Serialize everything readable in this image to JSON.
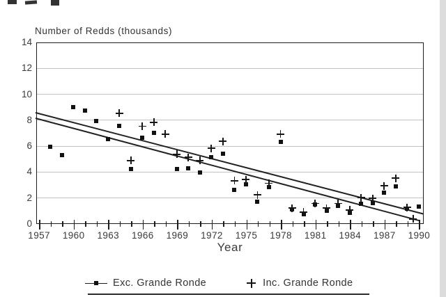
{
  "chart_data": {
    "type": "scatter",
    "title": "Number of Redds (thousands)",
    "xlabel": "Year",
    "ylabel": "",
    "xlim": [
      1956.75,
      1990.4
    ],
    "ylim": [
      0,
      14
    ],
    "y_ticks": [
      0,
      2,
      4,
      6,
      8,
      10,
      12,
      14
    ],
    "y_gridlines": [
      2,
      4,
      6,
      8,
      10,
      12
    ],
    "x_major_ticks": [
      1957,
      1960,
      1963,
      1966,
      1969,
      1972,
      1975,
      1978,
      1981,
      1984,
      1987,
      1990
    ],
    "x_minor_tick_step": 1,
    "x_minor_range": [
      1957,
      1990
    ],
    "grid": "horizontal-only",
    "legend_position": "bottom",
    "series": [
      {
        "name": "Exc. Grande Ronde",
        "marker": "square",
        "points": [
          [
            1958,
            5.9
          ],
          [
            1959,
            5.3
          ],
          [
            1960,
            9.0
          ],
          [
            1961,
            8.7
          ],
          [
            1962,
            7.9
          ],
          [
            1963,
            6.5
          ],
          [
            1964,
            7.55
          ],
          [
            1965,
            4.2
          ],
          [
            1966,
            6.6
          ],
          [
            1967,
            7.0
          ],
          [
            1969,
            4.2
          ],
          [
            1970,
            4.25
          ],
          [
            1971,
            3.95
          ],
          [
            1972,
            5.1
          ],
          [
            1973,
            5.4
          ],
          [
            1974,
            2.6
          ],
          [
            1975,
            3.0
          ],
          [
            1976,
            1.7
          ],
          [
            1977,
            2.8
          ],
          [
            1978,
            6.3
          ],
          [
            1979,
            1.1
          ],
          [
            1980,
            0.7
          ],
          [
            1981,
            1.45
          ],
          [
            1982,
            1.0
          ],
          [
            1983,
            1.35
          ],
          [
            1984,
            0.8
          ],
          [
            1985,
            1.55
          ],
          [
            1986,
            1.6
          ],
          [
            1987,
            2.4
          ],
          [
            1988,
            2.85
          ],
          [
            1989,
            1.15
          ],
          [
            1990,
            1.3
          ]
        ]
      },
      {
        "name": "Inc. Grande Ronde",
        "marker": "plus",
        "points": [
          [
            1964,
            8.5
          ],
          [
            1965,
            4.85
          ],
          [
            1966,
            7.5
          ],
          [
            1967,
            7.8
          ],
          [
            1968,
            6.9
          ],
          [
            1969,
            5.35
          ],
          [
            1970,
            5.1
          ],
          [
            1971,
            4.85
          ],
          [
            1972,
            5.8
          ],
          [
            1973,
            6.35
          ],
          [
            1974,
            3.3
          ],
          [
            1975,
            3.4
          ],
          [
            1976,
            2.2
          ],
          [
            1977,
            3.1
          ],
          [
            1978,
            6.9
          ],
          [
            1979,
            1.2
          ],
          [
            1980,
            0.9
          ],
          [
            1981,
            1.55
          ],
          [
            1982,
            1.2
          ],
          [
            1983,
            1.55
          ],
          [
            1984,
            1.05
          ],
          [
            1985,
            2.0
          ],
          [
            1986,
            1.95
          ],
          [
            1987,
            2.9
          ],
          [
            1988,
            3.5
          ],
          [
            1989,
            1.25
          ]
        ]
      }
    ],
    "trend_lines": [
      {
        "series": "Inc. Grande Ronde",
        "x1": 1956.75,
        "y1": 8.6,
        "x2": 1990.4,
        "y2": 0.8
      },
      {
        "series": "Exc. Grande Ronde",
        "x1": 1956.75,
        "y1": 8.15,
        "x2": 1990.1,
        "y2": 0.25
      }
    ],
    "unlabeled_marks": [
      {
        "x": 1989.5,
        "y": 0.35,
        "marker": "plus"
      }
    ]
  },
  "legend": {
    "items": [
      {
        "label": "Exc. Grande Ronde",
        "symbol": "line-square-symbol"
      },
      {
        "label": "Inc. Grande Ronde",
        "symbol": "plus-symbol"
      }
    ]
  },
  "colors": {
    "ink": "#1c1c1c",
    "grid": "#c2c2c2",
    "background": "#ffffff"
  }
}
